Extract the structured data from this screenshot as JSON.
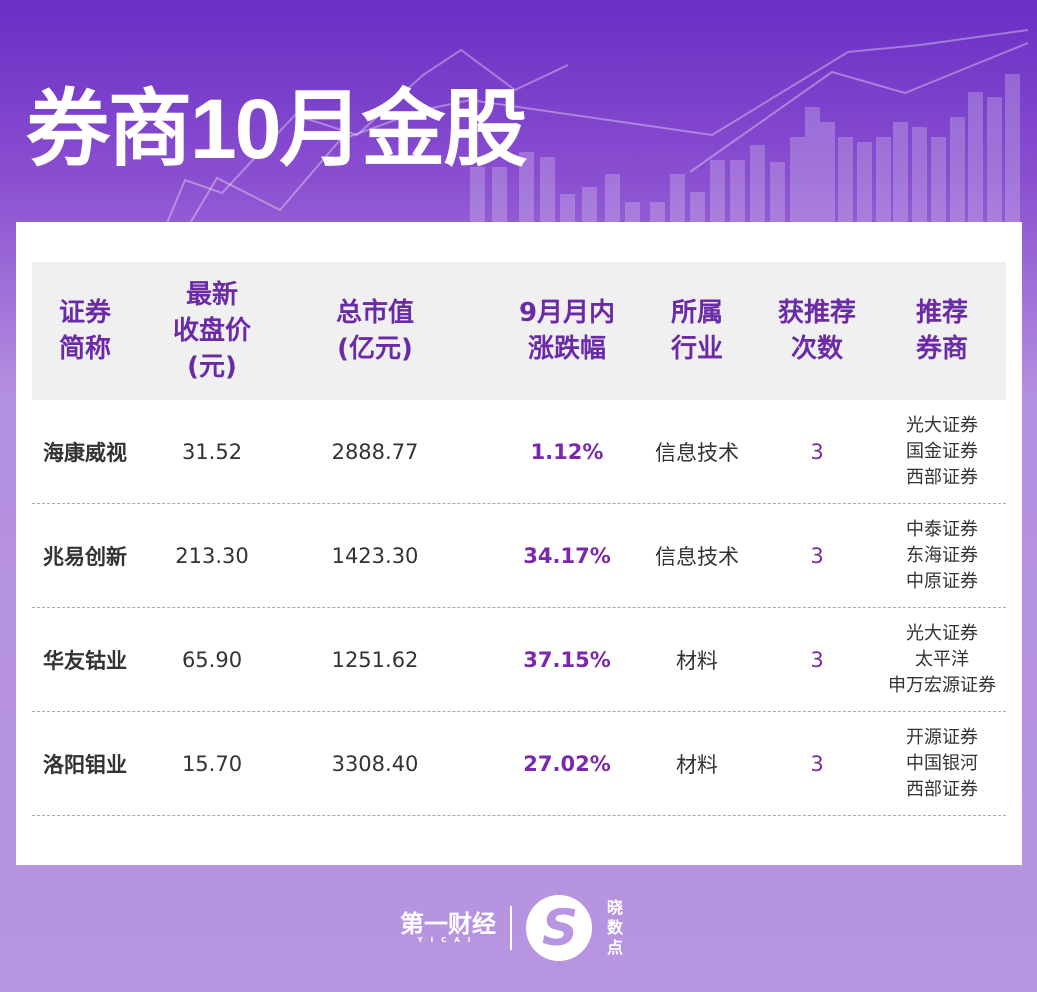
{
  "title": "券商10月金股",
  "table": {
    "headers": [
      "证券\n简称",
      "最新\n收盘价\n(元)",
      "总市值\n(亿元)",
      "9月月内\n涨跌幅",
      "所属\n行业",
      "获推荐\n次数",
      "推荐\n券商"
    ],
    "rows": [
      {
        "name": "海康威视",
        "price": "31.52",
        "cap": "2888.77",
        "change": "1.12%",
        "industry": "信息技术",
        "count": "3",
        "brokers": "光大证券\n国金证券\n西部证券"
      },
      {
        "name": "兆易创新",
        "price": "213.30",
        "cap": "1423.30",
        "change": "34.17%",
        "industry": "信息技术",
        "count": "3",
        "brokers": "中泰证券\n东海证券\n中原证券"
      },
      {
        "name": "华友钴业",
        "price": "65.90",
        "cap": "1251.62",
        "change": "37.15%",
        "industry": "材料",
        "count": "3",
        "brokers": "光大证券\n太平洋\n申万宏源证券"
      },
      {
        "name": "洛阳钼业",
        "price": "15.70",
        "cap": "3308.40",
        "change": "27.02%",
        "industry": "材料",
        "count": "3",
        "brokers": "开源证券\n中国银河\n西部证券"
      }
    ]
  },
  "footer": {
    "brand1": "第一财经",
    "brand1_sub": "YICAI",
    "brand2": "晓数点",
    "brand2_mark": "S"
  },
  "colors": {
    "accent": "#7a2aa8",
    "header_text": "#6b2aa6"
  }
}
